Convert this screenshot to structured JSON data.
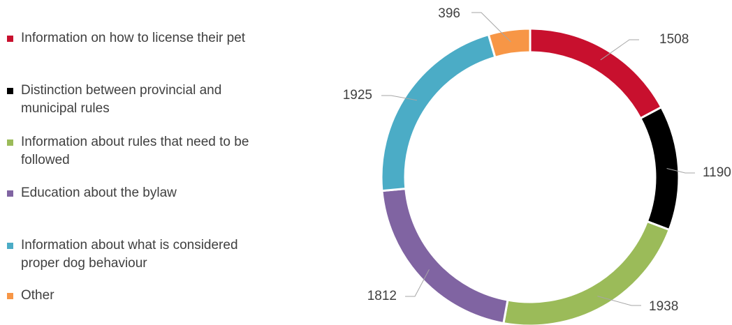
{
  "chart_data": {
    "type": "donut",
    "categories": [
      "Information on how to license their pet",
      "Distinction between provincial and municipal rules",
      "Information about rules that need to be followed",
      "Education about the bylaw",
      "Information about what is considered proper dog behaviour",
      "Other"
    ],
    "values": [
      1508,
      1190,
      1938,
      1812,
      1925,
      396
    ],
    "colors": [
      "#c8102e",
      "#000000",
      "#9bbb59",
      "#8064a2",
      "#4bacc6",
      "#f79646"
    ]
  }
}
